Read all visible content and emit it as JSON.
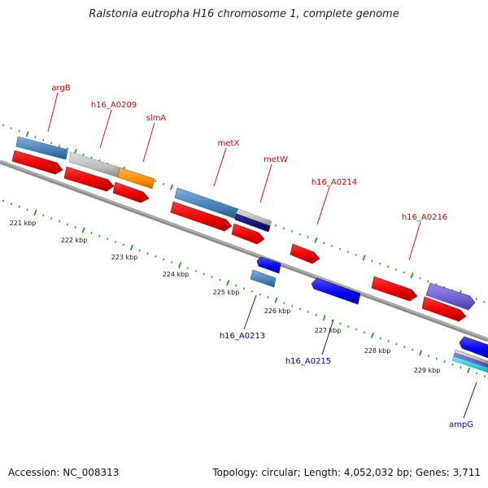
{
  "title": "Ralstonia eutropha H16 chromosome 1, complete genome",
  "footer": {
    "accession": "Accession: NC_008313",
    "info": "Topology: circular; Length: 4,052,032 bp; Genes: 3,711"
  },
  "colors": {
    "backbone": "#808080",
    "tick": "#1a8a1a",
    "label_red": "#cc0000",
    "label_blue": "#000099"
  },
  "tick_labels": [
    "221 kbp",
    "222 kbp",
    "223 kbp",
    "224 kbp",
    "225 kbp",
    "226 kbp",
    "227 kbp",
    "228 kbp",
    "229 kbp"
  ],
  "gene_labels": [
    {
      "text": "argB",
      "color": "#cc0000"
    },
    {
      "text": "h16_A0209",
      "color": "#cc0000"
    },
    {
      "text": "slmA",
      "color": "#cc0000"
    },
    {
      "text": "metX",
      "color": "#cc0000"
    },
    {
      "text": "metW",
      "color": "#cc0000"
    },
    {
      "text": "h16_A0214",
      "color": "#cc0000"
    },
    {
      "text": "h16_A0216",
      "color": "#cc0000"
    },
    {
      "text": "h16_A0213",
      "color": "#000099"
    },
    {
      "text": "h16_A0215",
      "color": "#000099"
    },
    {
      "text": "ampG",
      "color": "#000099"
    }
  ]
}
